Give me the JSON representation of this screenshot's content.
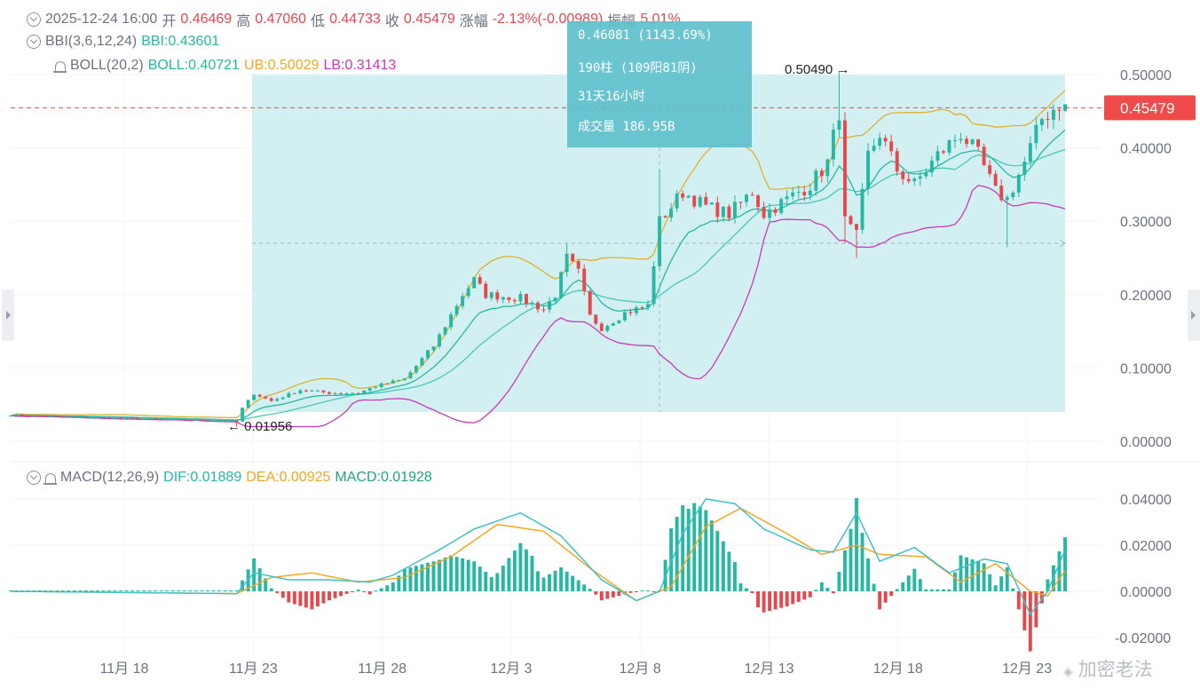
{
  "header": {
    "datetime": "2025-12-24 16:00",
    "open_label": "开",
    "open": "0.46469",
    "high_label": "高",
    "high": "0.47060",
    "low_label": "低",
    "low": "0.44733",
    "close_label": "收",
    "close": "0.45479",
    "change_label": "涨幅",
    "change": "-2.13%(-0.00989)",
    "amplitude_label": "振幅",
    "amplitude": "5.01%"
  },
  "bbi": {
    "name": "BBI(3,6,12,24)",
    "value_text": "BBI:0.43601"
  },
  "boll": {
    "name": "BOLL(20,2)",
    "mid_text": "BOLL:0.40721",
    "ub_text": "UB:0.50029",
    "lb_text": "LB:0.31413"
  },
  "macd": {
    "name": "MACD(12,26,9)",
    "dif_text": "DIF:0.01889",
    "dea_text": "DEA:0.00925",
    "macd_text": "MACD:0.01928"
  },
  "tooltip": {
    "line1": "0.46081 (1143.69%)",
    "line2": "190柱 (109阳81阴)",
    "line3": "31天16小时",
    "line4": "成交量 186.95B"
  },
  "annotations": {
    "high_mark": "0.50490 →",
    "low_mark": "← 0.01956"
  },
  "current_price_tag": "0.45479",
  "watermark": "加密老法",
  "colors": {
    "up": "#26b8a2",
    "down": "#e5484d",
    "bbi": "#26b8a2",
    "ub": "#e0b030",
    "mid": "#4cc7b8",
    "lb": "#c73ab5",
    "dif": "#3fc1c9",
    "dea": "#f5a623",
    "range_fill": "#cdeef1"
  },
  "chart_data": [
    {
      "type": "candlestick",
      "title": "",
      "xlabel": "",
      "ylabel": "",
      "ylim": [
        -0.02,
        0.5
      ],
      "yticks": [
        "0.50000",
        "0.40000",
        "0.30000",
        "0.20000",
        "0.10000",
        "0.00000"
      ],
      "xticks": [
        "11月 18",
        "11月 23",
        "11月 28",
        "12月 3",
        "12月 8",
        "12月 13",
        "12月 18",
        "12月 23"
      ],
      "price_points": [
        [
          0,
          0.036
        ],
        [
          10,
          0.033
        ],
        [
          20,
          0.031
        ],
        [
          30,
          0.029
        ],
        [
          39,
          0.027
        ],
        [
          40,
          0.045
        ],
        [
          42,
          0.065
        ],
        [
          45,
          0.055
        ],
        [
          50,
          0.07
        ],
        [
          55,
          0.066
        ],
        [
          60,
          0.066
        ],
        [
          63,
          0.075
        ],
        [
          68,
          0.085
        ],
        [
          73,
          0.13
        ],
        [
          78,
          0.2
        ],
        [
          80,
          0.22
        ],
        [
          82,
          0.2
        ],
        [
          88,
          0.195
        ],
        [
          92,
          0.18
        ],
        [
          94,
          0.2
        ],
        [
          96,
          0.25
        ],
        [
          98,
          0.23
        ],
        [
          100,
          0.17
        ],
        [
          102,
          0.155
        ],
        [
          106,
          0.175
        ],
        [
          110,
          0.185
        ],
        [
          112,
          0.3
        ],
        [
          116,
          0.34
        ],
        [
          120,
          0.32
        ],
        [
          124,
          0.31
        ],
        [
          128,
          0.34
        ],
        [
          130,
          0.31
        ],
        [
          134,
          0.33
        ],
        [
          138,
          0.35
        ],
        [
          141,
          0.38
        ],
        [
          143,
          0.45
        ],
        [
          144,
          0.3
        ],
        [
          146,
          0.28
        ],
        [
          148,
          0.39
        ],
        [
          150,
          0.42
        ],
        [
          153,
          0.37
        ],
        [
          156,
          0.35
        ],
        [
          160,
          0.39
        ],
        [
          164,
          0.42
        ],
        [
          167,
          0.39
        ],
        [
          170,
          0.34
        ],
        [
          172,
          0.33
        ],
        [
          175,
          0.38
        ],
        [
          178,
          0.44
        ],
        [
          181,
          0.46
        ],
        [
          182,
          0.455
        ]
      ],
      "range_box": {
        "y_top": 0.5,
        "y_bottom": 0.04,
        "dashed_level": 0.27
      },
      "crosshair_y": 0.27,
      "high_value": 0.5049,
      "low_value": 0.01956,
      "current_price": 0.45479
    },
    {
      "type": "macd",
      "title": "",
      "ylim": [
        -0.025,
        0.045
      ],
      "yticks": [
        "0.04000",
        "0.02000",
        "0.00000",
        "-0.02000"
      ],
      "dif_points": [
        [
          0,
          0.0
        ],
        [
          39,
          -0.001
        ],
        [
          42,
          0.008
        ],
        [
          48,
          0.005
        ],
        [
          55,
          0.005
        ],
        [
          62,
          0.004
        ],
        [
          66,
          0.007
        ],
        [
          74,
          0.018
        ],
        [
          80,
          0.027
        ],
        [
          88,
          0.034
        ],
        [
          95,
          0.024
        ],
        [
          102,
          0.005
        ],
        [
          108,
          -0.004
        ],
        [
          112,
          0.0
        ],
        [
          116,
          0.025
        ],
        [
          120,
          0.04
        ],
        [
          125,
          0.038
        ],
        [
          130,
          0.027
        ],
        [
          138,
          0.018
        ],
        [
          142,
          0.017
        ],
        [
          146,
          0.034
        ],
        [
          150,
          0.013
        ],
        [
          156,
          0.019
        ],
        [
          162,
          0.008
        ],
        [
          168,
          0.014
        ],
        [
          172,
          0.012
        ],
        [
          176,
          -0.01
        ],
        [
          179,
          0.0
        ],
        [
          182,
          0.018
        ]
      ],
      "dea_points": [
        [
          0,
          0.0
        ],
        [
          39,
          -0.001
        ],
        [
          45,
          0.006
        ],
        [
          52,
          0.008
        ],
        [
          60,
          0.004
        ],
        [
          68,
          0.006
        ],
        [
          76,
          0.015
        ],
        [
          84,
          0.029
        ],
        [
          92,
          0.026
        ],
        [
          100,
          0.01
        ],
        [
          108,
          -0.004
        ],
        [
          114,
          0.002
        ],
        [
          120,
          0.028
        ],
        [
          126,
          0.036
        ],
        [
          134,
          0.025
        ],
        [
          140,
          0.016
        ],
        [
          146,
          0.02
        ],
        [
          150,
          0.016
        ],
        [
          158,
          0.015
        ],
        [
          164,
          0.004
        ],
        [
          170,
          0.012
        ],
        [
          176,
          0.0
        ],
        [
          179,
          -0.002
        ],
        [
          182,
          0.009
        ]
      ]
    }
  ]
}
